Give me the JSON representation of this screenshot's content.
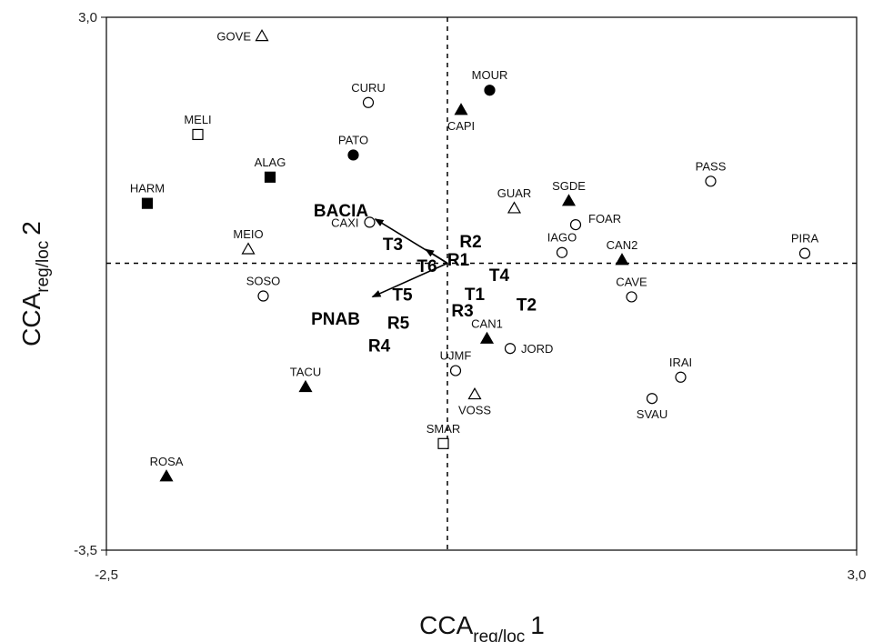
{
  "chart_data": {
    "type": "scatter",
    "xlabel": {
      "main": "CCA",
      "sub": "reg/loc",
      "suffix": "1"
    },
    "ylabel": {
      "main": "CCA",
      "sub": "reg/loc",
      "suffix": "2"
    },
    "xlim": [
      -2.5,
      3.0
    ],
    "ylim": [
      -3.5,
      3.0
    ],
    "x_tick_labels": [
      "-2,5",
      "3,0"
    ],
    "y_tick_labels": [
      "3,0",
      "-3,5"
    ],
    "reference_lines": {
      "x": 0,
      "y": 0,
      "style": "dashed"
    },
    "marker_styles": {
      "open-circle": {
        "shape": "circle",
        "fill": "#ffffff"
      },
      "filled-circle": {
        "shape": "circle",
        "fill": "#000000"
      },
      "open-triangle": {
        "shape": "triangle",
        "fill": "#ffffff"
      },
      "filled-triangle": {
        "shape": "triangle",
        "fill": "#000000"
      },
      "open-square": {
        "shape": "square",
        "fill": "#ffffff"
      },
      "filled-square": {
        "shape": "square",
        "fill": "#000000"
      }
    },
    "points": [
      {
        "label": "GOVE",
        "x": -1.36,
        "y": 2.77,
        "marker": "open-triangle",
        "label_pos": "left"
      },
      {
        "label": "CURU",
        "x": -0.58,
        "y": 1.96,
        "marker": "open-circle",
        "label_pos": "above"
      },
      {
        "label": "MOUR",
        "x": 0.31,
        "y": 2.11,
        "marker": "filled-circle",
        "label_pos": "above"
      },
      {
        "label": "MELI",
        "x": -1.83,
        "y": 1.57,
        "marker": "open-square",
        "label_pos": "above"
      },
      {
        "label": "CAPI",
        "x": 0.1,
        "y": 1.87,
        "marker": "filled-triangle",
        "label_pos": "below"
      },
      {
        "label": "PATO",
        "x": -0.69,
        "y": 1.32,
        "marker": "filled-circle",
        "label_pos": "above"
      },
      {
        "label": "ALAG",
        "x": -1.3,
        "y": 1.05,
        "marker": "filled-square",
        "label_pos": "above"
      },
      {
        "label": "HARM",
        "x": -2.2,
        "y": 0.73,
        "marker": "filled-square",
        "label_pos": "above"
      },
      {
        "label": "PASS",
        "x": 1.93,
        "y": 1.0,
        "marker": "open-circle",
        "label_pos": "above"
      },
      {
        "label": "GUAR",
        "x": 0.49,
        "y": 0.67,
        "marker": "open-triangle",
        "label_pos": "above"
      },
      {
        "label": "SGDE",
        "x": 0.89,
        "y": 0.76,
        "marker": "filled-triangle",
        "label_pos": "above"
      },
      {
        "label": "CAXI",
        "x": -0.57,
        "y": 0.5,
        "marker": "open-circle",
        "label_pos": "left"
      },
      {
        "label": "FOAR",
        "x": 0.94,
        "y": 0.47,
        "marker": "open-circle",
        "label_pos": "above-right"
      },
      {
        "label": "MEIO",
        "x": -1.46,
        "y": 0.17,
        "marker": "open-triangle",
        "label_pos": "above"
      },
      {
        "label": "IAGO",
        "x": 0.84,
        "y": 0.13,
        "marker": "open-circle",
        "label_pos": "above"
      },
      {
        "label": "CAN2",
        "x": 1.28,
        "y": 0.04,
        "marker": "filled-triangle",
        "label_pos": "above"
      },
      {
        "label": "PIRA",
        "x": 2.62,
        "y": 0.12,
        "marker": "open-circle",
        "label_pos": "above"
      },
      {
        "label": "SOSO",
        "x": -1.35,
        "y": -0.4,
        "marker": "open-circle",
        "label_pos": "above"
      },
      {
        "label": "CAVE",
        "x": 1.35,
        "y": -0.41,
        "marker": "open-circle",
        "label_pos": "above"
      },
      {
        "label": "CAN1",
        "x": 0.29,
        "y": -0.92,
        "marker": "filled-triangle",
        "label_pos": "above"
      },
      {
        "label": "JORD",
        "x": 0.46,
        "y": -1.04,
        "marker": "open-circle",
        "label_pos": "right"
      },
      {
        "label": "UJMF",
        "x": 0.06,
        "y": -1.31,
        "marker": "open-circle",
        "label_pos": "above"
      },
      {
        "label": "IRAI",
        "x": 1.71,
        "y": -1.39,
        "marker": "open-circle",
        "label_pos": "above"
      },
      {
        "label": "TACU",
        "x": -1.04,
        "y": -1.51,
        "marker": "filled-triangle",
        "label_pos": "above"
      },
      {
        "label": "VOSS",
        "x": 0.2,
        "y": -1.6,
        "marker": "open-triangle",
        "label_pos": "below"
      },
      {
        "label": "SVAU",
        "x": 1.5,
        "y": -1.65,
        "marker": "open-circle",
        "label_pos": "below"
      },
      {
        "label": "SMAR",
        "x": -0.03,
        "y": -2.2,
        "marker": "open-square",
        "label_pos": "above"
      },
      {
        "label": "ROSA",
        "x": -2.06,
        "y": -2.6,
        "marker": "filled-triangle",
        "label_pos": "above"
      }
    ],
    "vectors": [
      {
        "label": "BACIA",
        "x": -0.53,
        "y": 0.54
      },
      {
        "label": "T6",
        "x": -0.16,
        "y": 0.17
      },
      {
        "label": "PNAB",
        "x": -0.55,
        "y": -0.41
      }
    ],
    "factor_labels": [
      {
        "label": "BACIA",
        "x": -0.78,
        "y": 0.65
      },
      {
        "label": "T3",
        "x": -0.4,
        "y": 0.24
      },
      {
        "label": "R2",
        "x": 0.17,
        "y": 0.27
      },
      {
        "label": "T6",
        "x": -0.15,
        "y": -0.03
      },
      {
        "label": "R1",
        "x": 0.08,
        "y": 0.05
      },
      {
        "label": "T4",
        "x": 0.38,
        "y": -0.14
      },
      {
        "label": "T5",
        "x": -0.33,
        "y": -0.38
      },
      {
        "label": "T1",
        "x": 0.2,
        "y": -0.37
      },
      {
        "label": "T2",
        "x": 0.58,
        "y": -0.5
      },
      {
        "label": "R3",
        "x": 0.11,
        "y": -0.57
      },
      {
        "label": "PNAB",
        "x": -0.82,
        "y": -0.67
      },
      {
        "label": "R5",
        "x": -0.36,
        "y": -0.72
      },
      {
        "label": "R4",
        "x": -0.5,
        "y": -1.0
      }
    ]
  }
}
